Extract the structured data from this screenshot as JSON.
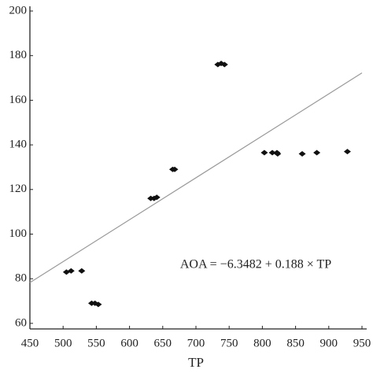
{
  "chart_data": {
    "type": "scatter",
    "x_label": "TP",
    "annotation": "AOA = −6.3482 + 0.188 × TP",
    "fit": {
      "intercept": -6.3482,
      "slope": 0.188
    },
    "line_color": "#999999",
    "series": [
      {
        "color": "#111111",
        "x": [
          505,
          512,
          528,
          543,
          548,
          553,
          632,
          637,
          641,
          665,
          668,
          733,
          738,
          743,
          803,
          815,
          822,
          823,
          860,
          882,
          928
        ],
        "values": [
          83,
          83.5,
          83.5,
          69,
          69,
          68.5,
          116,
          116,
          116.5,
          129,
          129,
          176,
          176.5,
          176,
          136.5,
          136.5,
          136.5,
          136,
          136,
          136.5,
          137
        ]
      }
    ],
    "xlim": [
      450,
      950
    ],
    "xticks": [
      450,
      500,
      550,
      600,
      650,
      700,
      750,
      800,
      850,
      900,
      950
    ],
    "ylim": [
      57.5,
      200
    ],
    "yticks": [
      60,
      80,
      100,
      120,
      140,
      160,
      180,
      200
    ]
  }
}
